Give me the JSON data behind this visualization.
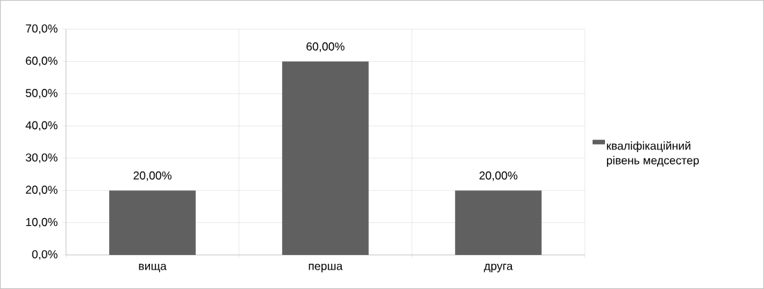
{
  "chart_data": {
    "type": "bar",
    "categories": [
      "вища",
      "перша",
      "друга"
    ],
    "series": [
      {
        "name": "кваліфікаційний рівень медсестер",
        "color": "#606060",
        "values": [
          20,
          60,
          20
        ],
        "value_labels": [
          "20,00%",
          "60,00%",
          "20,00%"
        ]
      }
    ],
    "ylim": [
      0,
      70
    ],
    "yticks": [
      {
        "value": 0,
        "label": "0,0%"
      },
      {
        "value": 10,
        "label": "10,0%"
      },
      {
        "value": 20,
        "label": "20,0%"
      },
      {
        "value": 30,
        "label": "30,0%"
      },
      {
        "value": 40,
        "label": "40,0%"
      },
      {
        "value": 50,
        "label": "50,0%"
      },
      {
        "value": 60,
        "label": "60,0%"
      },
      {
        "value": 70,
        "label": "70,0%"
      }
    ],
    "grid": true,
    "legend": "right"
  }
}
